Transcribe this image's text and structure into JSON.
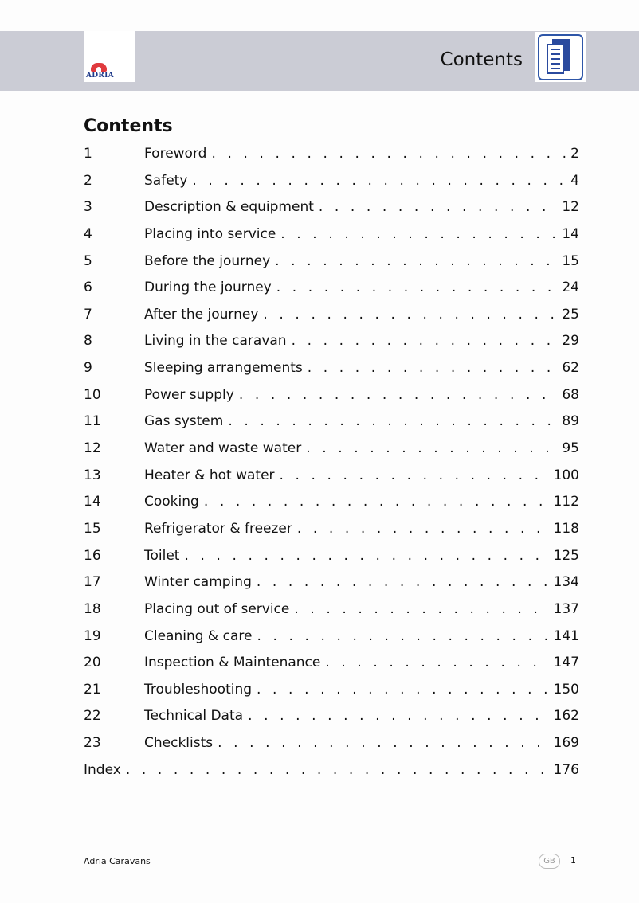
{
  "header": {
    "logo_text": "ADRIA",
    "title": "Contents",
    "icon": "document-pages-icon",
    "accent": "#2a4a9e",
    "band_color": "#cbccd5"
  },
  "heading": "Contents",
  "entries": [
    {
      "num": "1",
      "title": "Foreword",
      "page": "2"
    },
    {
      "num": "2",
      "title": "Safety",
      "page": "4"
    },
    {
      "num": "3",
      "title": "Description & equipment",
      "page": "12"
    },
    {
      "num": "4",
      "title": "Placing into service",
      "page": "14"
    },
    {
      "num": "5",
      "title": "Before the journey",
      "page": "15"
    },
    {
      "num": "6",
      "title": "During the journey",
      "page": "24"
    },
    {
      "num": "7",
      "title": "After the journey",
      "page": "25"
    },
    {
      "num": "8",
      "title": "Living in the caravan",
      "page": "29"
    },
    {
      "num": "9",
      "title": "Sleeping arrangements",
      "page": "62"
    },
    {
      "num": "10",
      "title": "Power supply",
      "page": "68"
    },
    {
      "num": "11",
      "title": "Gas system",
      "page": "89"
    },
    {
      "num": "12",
      "title": "Water and waste water",
      "page": "95"
    },
    {
      "num": "13",
      "title": "Heater & hot water",
      "page": "100"
    },
    {
      "num": "14",
      "title": "Cooking",
      "page": "112"
    },
    {
      "num": "15",
      "title": "Refrigerator & freezer",
      "page": "118"
    },
    {
      "num": "16",
      "title": "Toilet",
      "page": "125"
    },
    {
      "num": "17",
      "title": "Winter camping",
      "page": "134"
    },
    {
      "num": "18",
      "title": "Placing out of service",
      "page": "137"
    },
    {
      "num": "19",
      "title": "Cleaning & care",
      "page": "141"
    },
    {
      "num": "20",
      "title": "Inspection & Maintenance",
      "page": "147"
    },
    {
      "num": "21",
      "title": "Troubleshooting",
      "page": "150"
    },
    {
      "num": "22",
      "title": "Technical Data",
      "page": "162"
    },
    {
      "num": "23",
      "title": "Checklists",
      "page": "169"
    }
  ],
  "index": {
    "title": "Index",
    "page": "176"
  },
  "footer": {
    "brand": "Adria Caravans",
    "language": "GB",
    "page_number": "1"
  }
}
